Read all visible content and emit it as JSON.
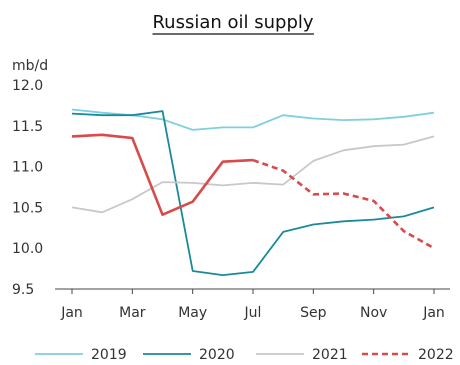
{
  "chart_data": {
    "type": "line",
    "title": "Russian oil supply",
    "ylabel": "mb/d",
    "xlabel": "",
    "categories": [
      "Jan",
      "Feb",
      "Mar",
      "Apr",
      "May",
      "Jun",
      "Jul",
      "Aug",
      "Sep",
      "Oct",
      "Nov",
      "Dec",
      "Jan"
    ],
    "xtick_labels": [
      "Jan",
      "Mar",
      "May",
      "Jul",
      "Sep",
      "Nov",
      "Jan"
    ],
    "ytick_labels": [
      "12.0",
      "11.5",
      "11.0",
      "10.5",
      "10.0",
      "9.5"
    ],
    "ylim": [
      9.5,
      12.0
    ],
    "grid": false,
    "legend_position": "bottom",
    "series": [
      {
        "name": "2019",
        "color": "#7ecfe0",
        "style": "solid",
        "values": [
          11.7,
          11.66,
          11.63,
          11.58,
          11.45,
          11.48,
          11.48,
          11.63,
          11.59,
          11.57,
          11.58,
          11.61,
          11.66
        ]
      },
      {
        "name": "2020",
        "color": "#1a8a9a",
        "style": "solid",
        "values": [
          11.65,
          11.63,
          11.63,
          11.68,
          9.72,
          9.67,
          9.71,
          10.2,
          10.29,
          10.33,
          10.35,
          10.39,
          10.5
        ]
      },
      {
        "name": "2021",
        "color": "#c8c8c8",
        "style": "solid",
        "values": [
          10.5,
          10.44,
          10.6,
          10.81,
          10.8,
          10.77,
          10.8,
          10.78,
          11.07,
          11.2,
          11.25,
          11.27,
          11.37
        ]
      },
      {
        "name": "2022",
        "color": "#d94a4a",
        "style": "solid-then-dashed",
        "dashed_from_index": 6,
        "values": [
          11.37,
          11.39,
          11.35,
          10.41,
          10.57,
          11.06,
          11.08,
          10.95,
          10.66,
          10.67,
          10.58,
          10.21,
          10.0
        ]
      }
    ]
  }
}
